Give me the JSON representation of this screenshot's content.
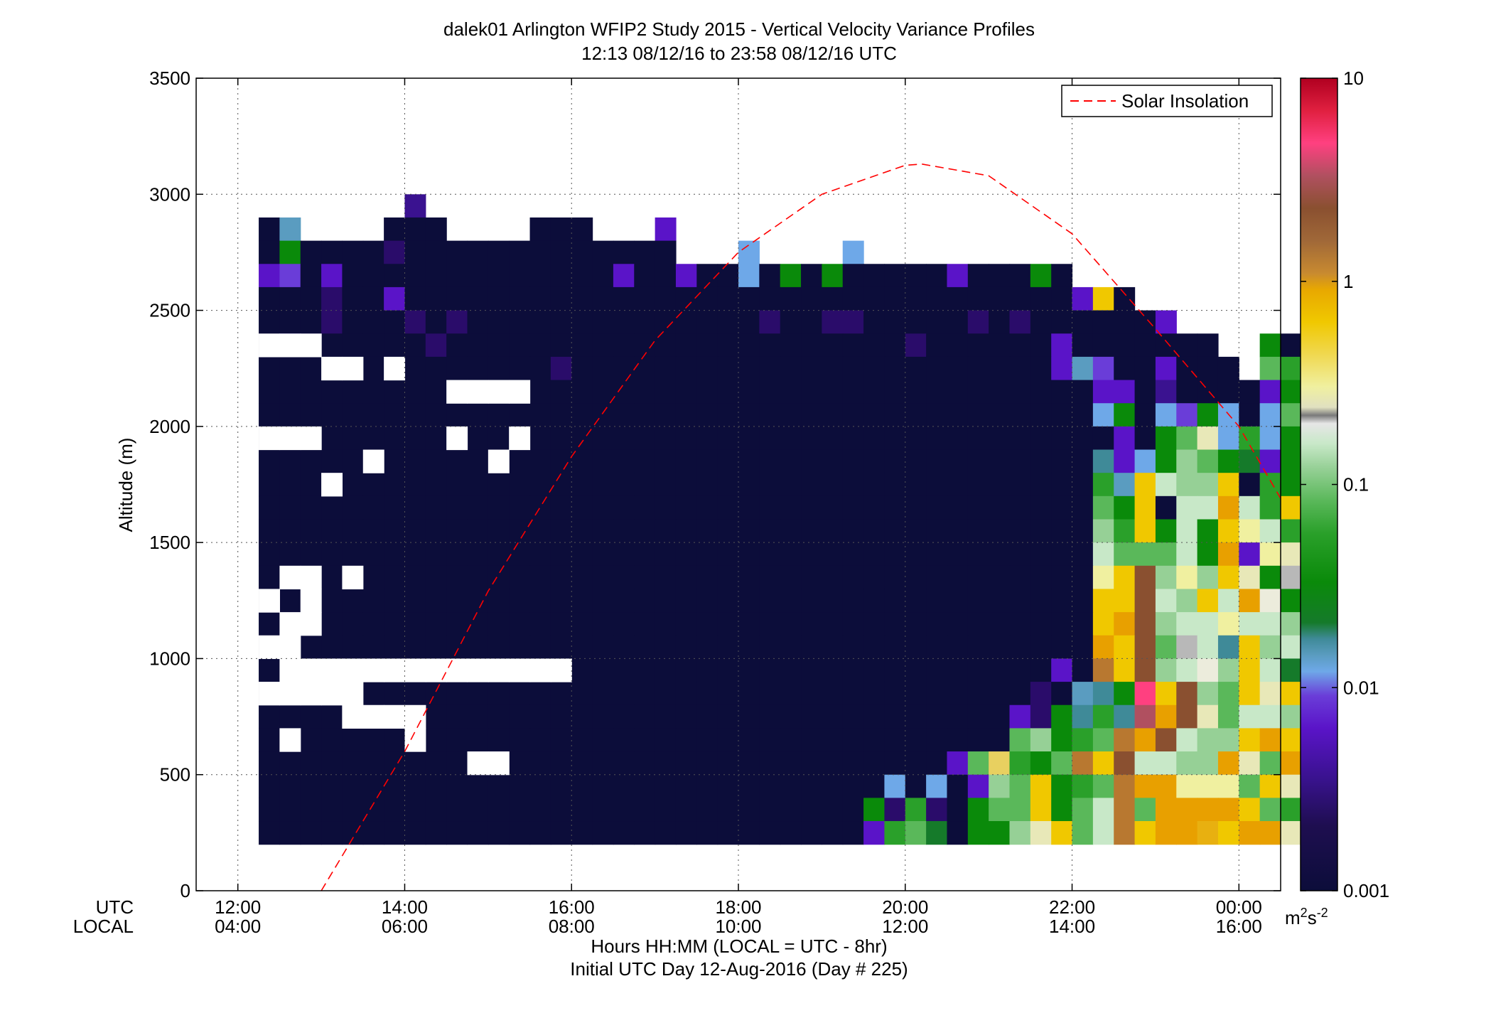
{
  "chart_data": {
    "type": "heatmap",
    "title_line1": "dalek01 Arlington WFIP2 Study 2015 - Vertical Velocity Variance Profiles",
    "title_line2": "12:13 08/12/16 to 23:58 08/12/16  UTC",
    "ylabel": "Altitude (m)",
    "xlabel_line1": "Hours HH:MM  (LOCAL = UTC - 8hr)",
    "xlabel_line2": "Initial UTC Day 12-Aug-2016 (Day # 225)",
    "x_row_labels": [
      "UTC",
      "LOCAL"
    ],
    "x_ticks_utc": [
      "12:00",
      "14:00",
      "16:00",
      "18:00",
      "20:00",
      "22:00",
      "00:00"
    ],
    "x_ticks_local": [
      "04:00",
      "06:00",
      "08:00",
      "10:00",
      "12:00",
      "14:00",
      "16:00"
    ],
    "x_tick_hours": [
      12,
      14,
      16,
      18,
      20,
      22,
      24
    ],
    "xlim_hours": [
      11.5,
      24.5
    ],
    "y_ticks": [
      0,
      500,
      1000,
      1500,
      2000,
      2500,
      3000,
      3500
    ],
    "ylim": [
      0,
      3500
    ],
    "grid": true,
    "legend": {
      "position": "top-right",
      "entries": [
        {
          "label": "Solar Insolation",
          "color": "#ff0000",
          "style": "dashed"
        }
      ]
    },
    "colorbar": {
      "scale": "log",
      "range": [
        0.001,
        10
      ],
      "tick_values": [
        0.001,
        0.01,
        0.1,
        1,
        10
      ],
      "tick_labels": [
        "0.001",
        "0.01",
        "0.1",
        "1",
        "10"
      ],
      "unit": "m^2s^-2",
      "unit_base": "m",
      "unit_exp1": "2",
      "unit_mid": "s",
      "unit_exp2": "-2"
    },
    "solar_insolation_curve": {
      "color": "#ff0000",
      "x_hours": [
        13.0,
        14.0,
        15.0,
        16.0,
        17.0,
        18.0,
        19.0,
        20.0,
        20.2,
        21.0,
        22.0,
        23.0,
        24.0,
        24.5
      ],
      "y_altitude": [
        0,
        600,
        1290,
        1870,
        2370,
        2750,
        3000,
        3125,
        3130,
        3080,
        2830,
        2420,
        2000,
        1690
      ]
    },
    "grid_cells": {
      "x_start_hour": 12.25,
      "x_step_hour": 0.25,
      "y_bottom_m": 200,
      "y_step_m": 100,
      "palette": {
        "N": "#0c0d3a",
        "P": "#5a14c8",
        "p": "#6a3dd8",
        "d": "#2a0c6a",
        "V": "#3a1290",
        "b": "#6ea8e8",
        "c": "#5a9cc0",
        "t": "#3f8a98",
        "g": "#0a8a0a",
        "e": "#157a2a",
        "G": "#2aa02a",
        "m": "#5ab85a",
        "l": "#96d096",
        "k": "#c8e8c8",
        "w": "#ececdc",
        "h": "#e8e8b8",
        "u": "#f0f0a0",
        "y": "#e8d060",
        "Y": "#f0c800",
        "o": "#e8b010",
        "O": "#e8a000",
        "B": "#b87830",
        "r": "#8a5030",
        "R": "#b05060",
        "M": "#ff4080",
        "s": "#b8b8b8"
      },
      "rows_top_to_bottom": [
        "...................................................",
        "...................................................",
        ".......V...........................................",
        "Nc....NNN....NNN...P...............................",
        "NgNNNNdNNNNNNNNNNNNN...b....b......................",
        "PpNPNNNNNNNNNNNNNPNNPNNbNgNgNNNNNPNNNgN............",
        "NNNdNNPNNNNNNNNNNNNNNNNNNNNNNNNNNNNNNNNPYN.........",
        "NNNdNNNdNdNNNNNNNNNNNNNNdNNddNNNNNdNdNNNNNNP.......",
        "NpdNNNNNdNNNNNNNNNNNNNNNNNNNNNNdNNNNNNPNNNNNNN..gN.",
        "NNNNNNNNNNNNNNdNNNNNNNNNNNNNNNNNNNNNNNPcpNNPNNN.mGG",
        "NNNNNNNNNNNNNNNNNNNNNNNNNNNNNNNNNNNNNNNNPPNVNNNNPgm",
        "NNNNNNNNNNNNNNNNNNNNNNNNNNNNNNNNNNNNNNNNbgNbpgbNbml",
        "NNNNNNNNNNNNNNNNNNNNNNNNNNNNNNNNNNNNNNNNNPNgmhbGbgg",
        "NNNNNNNNNNNNNNNNNNNNNNNNNNNNNNNNNNNNNNNNtPbglmgePgm",
        "NNNNNNNNNNNNNNNNNNNNNNNNNNNNNNNNNNNNNNNNGcYkllYNGgb",
        "NNNNNNNNNNNNNNNNNNNNNNNNNNNNNNNNNNNNNNNNmgYNkkOkGYY",
        "NNNNNNNNNNNNNNNNNNNNNNNNNNNNNNNNNNNNNNNNlGYgkgYukGk",
        "NNNNNNNNNNNNNNNNNNNNNNNNNNNNNNNNNNNNNNNNkmmmkgOPuhu",
        "NNNNNNNNNNNNNNNNNNNNNNNNNNNNNNNNNNNNNNNNuYrlulYhgsl",
        "NNNNNNNNNNNNNNNNNNNNNNNNNNNNNNNNNNNNNNNNYYrklYkOwgs",
        "NNNNNNNNNNNNNNNNNNNNNNNNNNNNNNNNNNNNNNNNYOrlkkukklb",
        "NNNNNNNNNNNNNNNNNNNNNNNNNNNNNNNNNNNNNNNNOYrmsktYlkt",
        "NNNNNNNNNNNNNNNNNNNNNNNNNNNNNNNNNNNNNNPNBYrlkwlYkeg",
        "NNNNNNNNNNNNNNNNNNNNNNNNNNNNNNNNNNNNNdNctgMYrlmYhYo",
        "NNNNNNNNNNNNNNNNNNNNNNNNNNNNNNNNNNNNPdgtGtROrhmkklm",
        "NNNNNNNNNNNNNNNNNNNNNNNNNNNNNNNNNNNNmlgGmBOrkllYOYu",
        "NNNNNNNNNNNNNNNNNNNNNNNNNNNNNNNNNPmyGgmBYrkkllOhmOh",
        "NNNNNNNNNNNNNNNNNNNNNNNNNNNNNNbNbNPlmYgGmBOOuuumYhk",
        "NNNNNNNNNNNNNNNNNNNNNNNNNNNNNgdGdNgmmYgmkBmOOOOYmGY",
        "NNNNNNNNNNNNNNNNNNNNNNNNNNNNNPGmeNgglhYmkBYOOoYOOhl"
      ]
    },
    "white_gaps": [
      [
        -1,
        2695
      ],
      [
        -1,
        2645
      ],
      [
        0,
        2345
      ],
      [
        1,
        2345
      ],
      [
        2,
        2345
      ],
      [
        -1,
        2295
      ],
      [
        4,
        2245
      ],
      [
        6,
        2245
      ],
      [
        -1,
        2245
      ],
      [
        3,
        2245
      ],
      [
        9,
        2195
      ],
      [
        10,
        2195
      ],
      [
        11,
        2145
      ],
      [
        12,
        2145
      ],
      [
        0,
        1995
      ],
      [
        1,
        1995
      ],
      [
        9,
        1995
      ],
      [
        12,
        1995
      ],
      [
        2,
        1995
      ],
      [
        5,
        1895
      ],
      [
        11,
        1895
      ],
      [
        3,
        1745
      ],
      [
        4,
        1395
      ],
      [
        1,
        1345
      ],
      [
        2,
        1345
      ],
      [
        0,
        1295
      ],
      [
        2,
        1245
      ],
      [
        1,
        1145
      ],
      [
        2,
        1145
      ],
      [
        0,
        1095
      ],
      [
        1,
        1045
      ],
      [
        1,
        945
      ],
      [
        2,
        945
      ],
      [
        3,
        945
      ],
      [
        4,
        945
      ],
      [
        5,
        945
      ],
      [
        6,
        945
      ],
      [
        7,
        945
      ],
      [
        8,
        945
      ],
      [
        9,
        945
      ],
      [
        10,
        945
      ],
      [
        11,
        945
      ],
      [
        12,
        945
      ],
      [
        13,
        945
      ],
      [
        14,
        945
      ],
      [
        0,
        895
      ],
      [
        1,
        895
      ],
      [
        2,
        895
      ],
      [
        3,
        895
      ],
      [
        4,
        895
      ],
      [
        4,
        795
      ],
      [
        7,
        795
      ],
      [
        4,
        745
      ],
      [
        5,
        745
      ],
      [
        6,
        745
      ],
      [
        1,
        695
      ],
      [
        7,
        645
      ],
      [
        10,
        595
      ],
      [
        11,
        595
      ]
    ],
    "white_gaps_encoding": "col,altitude"
  }
}
